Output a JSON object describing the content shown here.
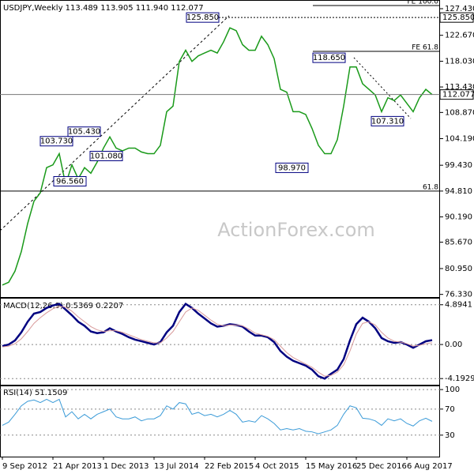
{
  "chart_data": [
    {
      "type": "line",
      "title": "USDJPY,Weekly  113.489 113.905 111.940 112.077",
      "watermark": "ActionForex.com",
      "color": "#1a9a1a",
      "values": [
        78.0,
        78.5,
        80.5,
        84,
        89,
        93,
        94.5,
        99,
        99.5,
        101.5,
        96,
        99.5,
        97,
        99,
        98,
        100,
        102.5,
        104.5,
        102.5,
        102,
        102.5,
        102.5,
        101.8,
        101.5,
        101.5,
        103,
        109,
        110,
        118,
        120,
        118,
        119,
        119.5,
        120,
        119.5,
        121.5,
        124,
        123.5,
        121,
        120,
        120,
        122.5,
        121,
        118.5,
        113,
        112.5,
        109,
        109,
        108.5,
        106,
        103,
        101.5,
        101.5,
        104,
        110,
        117,
        117,
        114,
        113,
        112,
        109,
        111.5,
        111,
        112,
        110.5,
        109,
        111.5,
        113,
        112.077
      ],
      "ylim": [
        76.0,
        128.7
      ],
      "yticks": [
        {
          "value": 127.43,
          "label": "127.430"
        },
        {
          "value": 122.67,
          "label": "122.670"
        },
        {
          "value": 118.03,
          "label": "118.030"
        },
        {
          "value": 113.43,
          "label": "113.430"
        },
        {
          "value": 108.87,
          "label": "108.870"
        },
        {
          "value": 104.19,
          "label": "104.190"
        },
        {
          "value": 99.43,
          "label": "99.430"
        },
        {
          "value": 94.81,
          "label": "94.810"
        },
        {
          "value": 90.19,
          "label": "90.190"
        },
        {
          "value": 85.67,
          "label": "85.670"
        },
        {
          "value": 80.95,
          "label": "80.950"
        },
        {
          "value": 76.33,
          "label": "76.330"
        }
      ],
      "annotations": [
        {
          "value": 125.85,
          "label": "125.850"
        },
        {
          "value": 118.65,
          "label": "118.650"
        },
        {
          "value": 103.73,
          "label": "103.730"
        },
        {
          "value": 105.43,
          "label": "105.430"
        },
        {
          "value": 101.08,
          "label": "101.080"
        },
        {
          "value": 96.56,
          "label": "96.560"
        },
        {
          "value": 98.97,
          "label": "98.970"
        },
        {
          "value": 107.31,
          "label": "107.310"
        }
      ],
      "levels": [
        {
          "label": "FE 100.0",
          "value": 128.0
        },
        {
          "label": "FE 61.8",
          "value": 119.8
        },
        {
          "label": "61.8",
          "value": 94.8
        }
      ],
      "last": {
        "value": 112.077,
        "label": "112.077"
      },
      "grid": false
    },
    {
      "type": "line",
      "title": "MACD(12,26,9) 0.5369 0.2207",
      "series": [
        {
          "color": "#000080",
          "values": [
            -0.2,
            0.0,
            0.5,
            1.5,
            2.8,
            3.8,
            4.0,
            4.5,
            4.8,
            5.0,
            4.3,
            3.6,
            2.8,
            2.3,
            1.6,
            1.4,
            1.5,
            2.0,
            1.6,
            1.3,
            0.9,
            0.6,
            0.4,
            0.2,
            0.0,
            0.3,
            1.5,
            2.3,
            4.0,
            5.0,
            4.5,
            3.8,
            3.2,
            2.6,
            2.2,
            2.3,
            2.5,
            2.4,
            2.2,
            1.6,
            1.1,
            1.1,
            0.9,
            0.3,
            -0.8,
            -1.5,
            -2.0,
            -2.3,
            -2.6,
            -3.1,
            -3.9,
            -4.2,
            -3.6,
            -3.1,
            -1.8,
            0.5,
            2.5,
            3.3,
            2.8,
            2.0,
            0.8,
            0.4,
            0.2,
            0.3,
            0.0,
            -0.4,
            0.0,
            0.4,
            0.5369
          ]
        },
        {
          "color": "#d89a9a",
          "values": [
            -0.3,
            -0.2,
            0.1,
            0.7,
            1.6,
            2.6,
            3.3,
            3.9,
            4.4,
            4.7,
            4.6,
            4.1,
            3.4,
            2.8,
            2.2,
            1.8,
            1.6,
            1.7,
            1.7,
            1.5,
            1.2,
            0.9,
            0.6,
            0.4,
            0.2,
            0.2,
            0.8,
            1.6,
            2.8,
            4.0,
            4.5,
            4.2,
            3.6,
            3.0,
            2.5,
            2.3,
            2.4,
            2.4,
            2.3,
            1.9,
            1.4,
            1.2,
            1.0,
            0.6,
            -0.2,
            -1.0,
            -1.6,
            -2.0,
            -2.4,
            -2.8,
            -3.4,
            -3.9,
            -3.8,
            -3.4,
            -2.5,
            -0.8,
            1.3,
            2.6,
            2.8,
            2.4,
            1.5,
            0.8,
            0.4,
            0.3,
            0.1,
            -0.2,
            -0.1,
            0.1,
            0.2207
          ]
        }
      ],
      "ylim": [
        -4.95,
        5.55
      ],
      "yticks": [
        4.8941,
        {
          "value": 0,
          "label": "0.00"
        },
        -4.1929
      ],
      "grid": true
    },
    {
      "type": "line",
      "title": "RSI(14) 51.1509",
      "color": "#3b9bd8",
      "categories": [
        "9 Sep 2012",
        null,
        null,
        null,
        null,
        null,
        null,
        null,
        "21 Apr 2013",
        null,
        null,
        null,
        null,
        null,
        null,
        null,
        "1 Dec 2013",
        null,
        null,
        null,
        null,
        null,
        null,
        null,
        "13 Jul 2014",
        null,
        null,
        null,
        null,
        null,
        null,
        null,
        "22 Feb 2015",
        null,
        null,
        null,
        null,
        null,
        null,
        null,
        "4 Oct 2015",
        null,
        null,
        null,
        null,
        null,
        null,
        null,
        "15 May 2016",
        null,
        null,
        null,
        null,
        null,
        null,
        null,
        "25 Dec 2016",
        null,
        null,
        null,
        null,
        null,
        null,
        null,
        "6 Aug 2017",
        null,
        null,
        null,
        null
      ],
      "values": [
        45,
        50,
        62,
        75,
        82,
        84,
        80,
        85,
        80,
        85,
        58,
        66,
        55,
        62,
        55,
        62,
        66,
        70,
        58,
        55,
        55,
        58,
        52,
        55,
        55,
        60,
        75,
        70,
        80,
        78,
        62,
        65,
        60,
        62,
        58,
        62,
        68,
        62,
        50,
        52,
        50,
        60,
        55,
        48,
        38,
        40,
        38,
        40,
        36,
        35,
        32,
        35,
        38,
        45,
        62,
        75,
        72,
        56,
        55,
        52,
        45,
        55,
        52,
        55,
        48,
        44,
        52,
        56,
        51.1509
      ],
      "ylim": [
        -3,
        105
      ],
      "yticks": [
        100,
        70,
        30
      ],
      "grid": true
    }
  ]
}
